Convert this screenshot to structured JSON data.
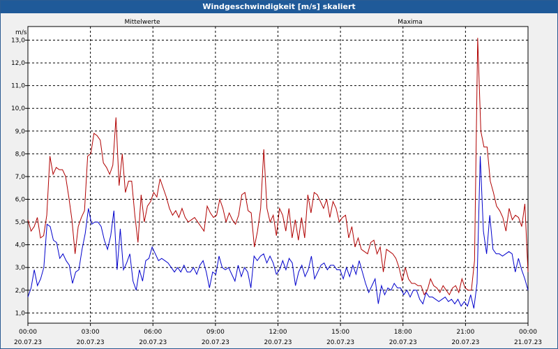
{
  "window": {
    "title": "Windgeschwindigkeit [m/s] skaliert"
  },
  "chart_data": {
    "type": "line",
    "title": "Windgeschwindigkeit [m/s] skaliert",
    "ylabel": "m/s",
    "xlabel": "",
    "ylim": [
      0.55,
      13.6
    ],
    "xlim": [
      0,
      24
    ],
    "y_ticks": [
      1.0,
      2.0,
      3.0,
      4.0,
      5.0,
      6.0,
      7.0,
      8.0,
      9.0,
      10.0,
      11.0,
      12.0,
      13.0
    ],
    "y_tick_labels": [
      "1,0",
      "2,0",
      "3,0",
      "4,0",
      "5,0",
      "6,0",
      "7,0",
      "8,0",
      "9,0",
      "10,0",
      "11,0",
      "12,0",
      "13,0"
    ],
    "x_ticks": [
      0,
      3,
      6,
      9,
      12,
      15,
      18,
      21,
      24
    ],
    "x_tick_labels": [
      {
        "time": "00:00",
        "date": "20.07.23"
      },
      {
        "time": "03:00",
        "date": "20.07.23"
      },
      {
        "time": "06:00",
        "date": "20.07.23"
      },
      {
        "time": "09:00",
        "date": "20.07.23"
      },
      {
        "time": "12:00",
        "date": "20.07.23"
      },
      {
        "time": "15:00",
        "date": "20.07.23"
      },
      {
        "time": "18:00",
        "date": "20.07.23"
      },
      {
        "time": "21:00",
        "date": "20.07.23"
      },
      {
        "time": "00:00",
        "date": "21.07.23"
      }
    ],
    "grid": true,
    "series": [
      {
        "name": "Mittelwerte",
        "color": "#0000cc",
        "values": [
          1.7,
          2.1,
          2.9,
          2.2,
          2.5,
          3.0,
          4.9,
          4.8,
          4.2,
          4.1,
          3.4,
          3.6,
          3.3,
          3.1,
          2.3,
          2.8,
          2.9,
          3.8,
          4.5,
          5.6,
          4.9,
          5.0,
          5.0,
          4.8,
          4.2,
          3.8,
          4.4,
          5.5,
          2.9,
          4.7,
          2.9,
          3.2,
          3.6,
          2.4,
          2.0,
          2.9,
          2.4,
          3.3,
          3.4,
          3.9,
          3.6,
          3.3,
          3.4,
          3.3,
          3.2,
          3.0,
          2.8,
          3.0,
          2.8,
          3.1,
          2.8,
          2.8,
          3.0,
          2.7,
          3.1,
          3.3,
          2.8,
          2.1,
          2.8,
          2.7,
          3.5,
          3.0,
          2.9,
          3.0,
          2.7,
          2.4,
          3.1,
          2.6,
          3.0,
          2.8,
          2.1,
          3.5,
          3.3,
          3.5,
          3.6,
          3.2,
          3.5,
          3.2,
          2.7,
          2.9,
          3.3,
          2.9,
          3.4,
          3.2,
          2.2,
          2.8,
          3.1,
          2.6,
          2.9,
          3.5,
          2.5,
          2.8,
          3.1,
          3.2,
          2.9,
          3.1,
          3.1,
          2.9,
          2.9,
          2.5,
          3.0,
          2.6,
          3.1,
          2.7,
          3.3,
          2.8,
          2.3,
          1.9,
          2.2,
          2.5,
          1.4,
          2.2,
          1.8,
          2.1,
          2.0,
          2.3,
          2.1,
          2.1,
          1.8,
          2.0,
          1.7,
          2.0,
          2.0,
          1.6,
          1.4,
          1.9,
          1.7,
          1.7,
          1.6,
          1.5,
          1.6,
          1.7,
          1.5,
          1.6,
          1.4,
          1.6,
          1.3,
          1.5,
          1.3,
          1.8,
          1.2,
          2.3,
          7.9,
          4.6,
          3.6,
          5.3,
          3.8,
          3.6,
          3.6,
          3.5,
          3.6,
          3.7,
          3.6,
          2.8,
          3.4,
          2.9,
          2.5,
          2.0
        ]
      },
      {
        "name": "Maxima",
        "color": "#b00000",
        "values": [
          5.1,
          4.6,
          4.8,
          5.2,
          4.3,
          4.4,
          5.3,
          7.9,
          7.1,
          7.4,
          7.3,
          7.3,
          7.0,
          6.1,
          5.1,
          3.6,
          4.8,
          5.2,
          5.5,
          7.9,
          8.0,
          8.9,
          8.8,
          8.6,
          7.6,
          7.4,
          7.1,
          7.5,
          9.6,
          6.6,
          8.0,
          6.3,
          6.8,
          6.8,
          5.3,
          4.1,
          6.2,
          5.0,
          5.7,
          5.9,
          6.3,
          6.1,
          6.9,
          6.5,
          6.1,
          5.6,
          5.3,
          5.5,
          5.2,
          5.6,
          5.2,
          5.0,
          5.1,
          5.2,
          5.0,
          4.8,
          4.6,
          5.7,
          5.4,
          5.2,
          5.3,
          6.0,
          5.6,
          5.0,
          5.4,
          5.1,
          4.9,
          5.3,
          6.2,
          6.3,
          5.5,
          5.4,
          3.9,
          4.6,
          5.6,
          8.2,
          5.6,
          5.0,
          5.3,
          4.4,
          5.6,
          5.3,
          4.6,
          5.6,
          4.3,
          5.1,
          4.2,
          5.2,
          4.3,
          6.2,
          5.4,
          6.3,
          6.2,
          5.9,
          5.6,
          6.0,
          5.2,
          5.9,
          5.6,
          5.0,
          5.2,
          5.3,
          4.3,
          4.8,
          3.9,
          4.3,
          3.8,
          3.7,
          3.6,
          4.1,
          4.2,
          3.6,
          3.9,
          2.8,
          3.8,
          3.7,
          3.6,
          3.4,
          3.0,
          2.4,
          3.0,
          2.5,
          2.3,
          2.3,
          2.2,
          2.2,
          1.8,
          2.0,
          2.5,
          2.2,
          2.1,
          1.9,
          2.2,
          2.0,
          1.8,
          2.1,
          2.2,
          1.9,
          2.5,
          2.1,
          2.0,
          2.0,
          3.3,
          13.1,
          9.0,
          8.3,
          8.3,
          6.8,
          6.3,
          5.7,
          5.5,
          5.2,
          4.6,
          5.6,
          5.1,
          5.3,
          5.2,
          4.8,
          5.8,
          2.8
        ]
      }
    ]
  }
}
